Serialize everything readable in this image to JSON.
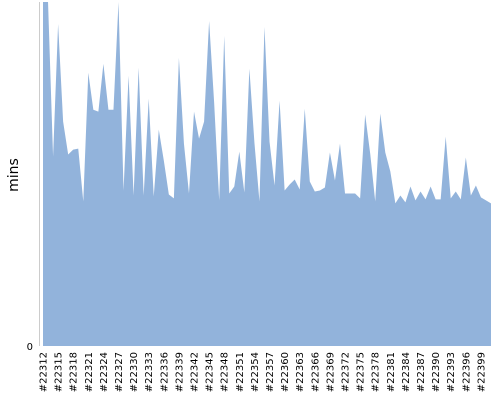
{
  "chart_data": {
    "type": "area",
    "title": "",
    "xlabel": "",
    "ylabel": "mins",
    "ylim": [
      0,
      345
    ],
    "y_ticks": [
      0
    ],
    "color": "#92b3db",
    "axis_color": "#cccccc",
    "grid": false,
    "legend": "none",
    "x_tick_labels": [
      "#22312",
      "#22315",
      "#22318",
      "#22321",
      "#22324",
      "#22327",
      "#22330",
      "#22333",
      "#22336",
      "#22339",
      "#22342",
      "#22345",
      "#22348",
      "#22351",
      "#22354",
      "#22357",
      "#22360",
      "#22363",
      "#22366",
      "#22369",
      "#22372",
      "#22375",
      "#22378",
      "#22381",
      "#22384",
      "#22387",
      "#22390",
      "#22393",
      "#22396",
      "#22399"
    ],
    "x": [
      22312,
      22313,
      22314,
      22315,
      22316,
      22317,
      22318,
      22319,
      22320,
      22321,
      22322,
      22323,
      22324,
      22325,
      22326,
      22327,
      22328,
      22329,
      22330,
      22331,
      22332,
      22333,
      22334,
      22335,
      22336,
      22337,
      22338,
      22339,
      22340,
      22341,
      22342,
      22343,
      22344,
      22345,
      22346,
      22347,
      22348,
      22349,
      22350,
      22351,
      22352,
      22353,
      22354,
      22355,
      22356,
      22357,
      22358,
      22359,
      22360,
      22361,
      22362,
      22363,
      22364,
      22365,
      22366,
      22367,
      22368,
      22369,
      22370,
      22371,
      22372,
      22373,
      22374,
      22375,
      22376,
      22377,
      22378,
      22379,
      22380,
      22381,
      22382,
      22383,
      22384,
      22385,
      22386,
      22387,
      22388,
      22389,
      22390,
      22391,
      22392,
      22393,
      22394,
      22395,
      22396,
      22397,
      22398,
      22399,
      22400,
      22401
    ],
    "values": [
      345,
      345,
      190,
      323,
      225,
      192,
      197,
      198,
      145,
      274,
      237,
      235,
      283,
      237,
      237,
      345,
      156,
      271,
      151,
      279,
      151,
      248,
      150,
      217,
      186,
      152,
      148,
      289,
      203,
      153,
      235,
      208,
      225,
      326,
      244,
      146,
      311,
      153,
      160,
      195,
      154,
      278,
      204,
      145,
      320,
      205,
      161,
      246,
      156,
      162,
      167,
      157,
      238,
      165,
      155,
      156,
      159,
      194,
      166,
      203,
      153,
      153,
      153,
      148,
      232,
      193,
      145,
      233,
      194,
      175,
      143,
      151,
      144,
      160,
      146,
      155,
      147,
      160,
      147,
      147,
      210,
      148,
      155,
      147,
      189,
      151,
      161,
      149,
      146,
      143
    ]
  }
}
